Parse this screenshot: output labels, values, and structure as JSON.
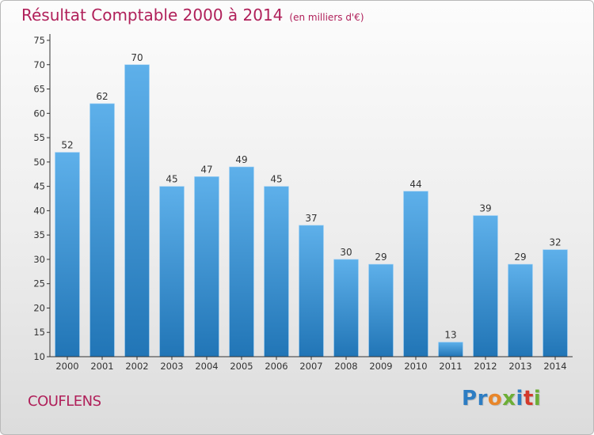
{
  "header": {
    "title": "Résultat Comptable 2000 à 2014",
    "subtitle": "(en milliers d'€)"
  },
  "footer": {
    "commune": "COUFLENS",
    "logo_letters": [
      "P",
      "r",
      "o",
      "x",
      "i",
      "t",
      "i"
    ],
    "logo_colors": [
      "#2d7dc3",
      "#2d7dc3",
      "#e8862a",
      "#6cae36",
      "#2d7dc3",
      "#d33a2c",
      "#6cae36"
    ]
  },
  "colors": {
    "title": "#b0205a",
    "bar_top": "#5eb0ea",
    "bar_bottom": "#2175b6",
    "axis": "#333333"
  },
  "chart_data": {
    "type": "bar",
    "title": "Résultat Comptable 2000 à 2014",
    "subtitle": "(en milliers d'€)",
    "xlabel": "",
    "ylabel": "",
    "categories": [
      "2000",
      "2001",
      "2002",
      "2003",
      "2004",
      "2005",
      "2006",
      "2007",
      "2008",
      "2009",
      "2010",
      "2011",
      "2012",
      "2013",
      "2014"
    ],
    "values": [
      52,
      62,
      70,
      45,
      47,
      49,
      45,
      37,
      30,
      29,
      44,
      13,
      39,
      29,
      32
    ],
    "ylim": [
      10,
      75
    ],
    "yticks": [
      10,
      15,
      20,
      25,
      30,
      35,
      40,
      45,
      50,
      55,
      60,
      65,
      70,
      75
    ],
    "grid": false,
    "data_labels": true
  }
}
